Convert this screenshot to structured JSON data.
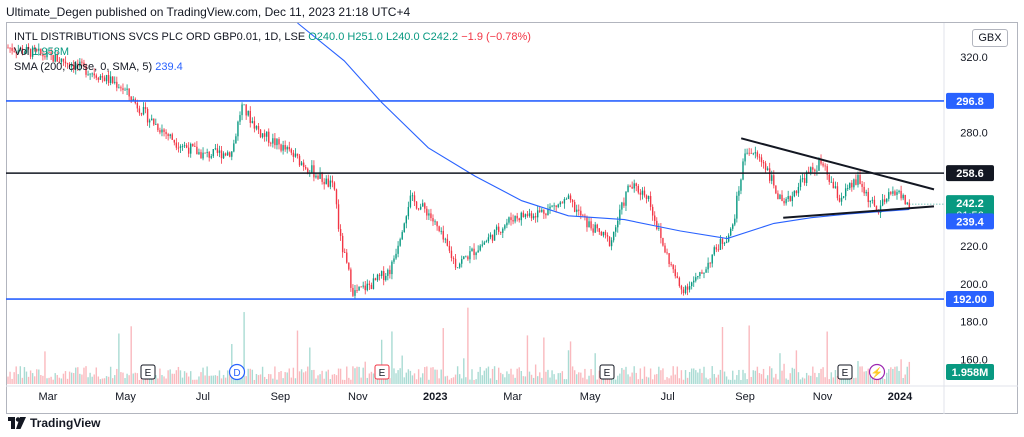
{
  "publisher_text": "Ultimate_Degen published on TradingView.com, Dec 11, 2023 21:18 UTC+4",
  "legend": {
    "symbol": "INTL DISTRIBUTIONS SVCS PLC ORD GBP0.01, 1D, LSE",
    "open": "O240.0",
    "high": "H251.0",
    "low": "L240.0",
    "close": "C242.2",
    "change": "−1.9 (−0.78%)",
    "vol_label": "Vol",
    "vol_value": "1.958M",
    "sma_label": "SMA (200, close, 0, SMA, 5)",
    "sma_value": "239.4"
  },
  "currency": "GBX",
  "footer_brand": "TradingView",
  "colors": {
    "up": "#089981",
    "down": "#f23645",
    "sma": "#2962ff",
    "hline_blue": "#2962ff",
    "hline_black": "#131722",
    "triangle": "#131722"
  },
  "chart_data": {
    "type": "candlestick",
    "y_axis": {
      "min": 146,
      "max": 338,
      "ticks": [
        "320.0",
        "280.0",
        "220.0",
        "200.0",
        "180.0",
        "160.0"
      ]
    },
    "x_axis": {
      "labels": [
        "Mar",
        "May",
        "Jul",
        "Sep",
        "Nov",
        "2023",
        "Mar",
        "May",
        "Jul",
        "Sep",
        "Nov",
        "2024"
      ]
    },
    "horizontal_lines": [
      {
        "value": 296.8,
        "label": "296.8",
        "color": "#2962ff"
      },
      {
        "value": 258.6,
        "label": "258.6",
        "color": "#131722"
      },
      {
        "value": 192.0,
        "label": "192.00",
        "color": "#2962ff"
      }
    ],
    "price_tags": [
      {
        "label": "242.2",
        "sub": "01:56",
        "value": 242.2,
        "color": "#089981"
      },
      {
        "label": "239.4",
        "value": 239.4,
        "color": "#2962ff"
      }
    ],
    "volume_tag": {
      "label": "1.958M",
      "color": "#089981"
    },
    "trendlines": [
      {
        "name": "upper",
        "from": [
          "Jul 2023",
          277
        ],
        "to": [
          "Dec 2023",
          250
        ]
      },
      {
        "name": "lower",
        "from": [
          "Aug 2023",
          235
        ],
        "to": [
          "Dec 2023",
          241
        ]
      }
    ],
    "price_path": [
      {
        "t": 0,
        "p": 325
      },
      {
        "t": 0.03,
        "p": 322
      },
      {
        "t": 0.06,
        "p": 318
      },
      {
        "t": 0.09,
        "p": 312
      },
      {
        "t": 0.12,
        "p": 305
      },
      {
        "t": 0.15,
        "p": 288
      },
      {
        "t": 0.18,
        "p": 275
      },
      {
        "t": 0.21,
        "p": 268
      },
      {
        "t": 0.24,
        "p": 270
      },
      {
        "t": 0.25,
        "p": 294
      },
      {
        "t": 0.27,
        "p": 280
      },
      {
        "t": 0.3,
        "p": 270
      },
      {
        "t": 0.33,
        "p": 258
      },
      {
        "t": 0.35,
        "p": 250
      },
      {
        "t": 0.355,
        "p": 225
      },
      {
        "t": 0.37,
        "p": 195
      },
      {
        "t": 0.39,
        "p": 200
      },
      {
        "t": 0.41,
        "p": 208
      },
      {
        "t": 0.43,
        "p": 245
      },
      {
        "t": 0.45,
        "p": 238
      },
      {
        "t": 0.48,
        "p": 210
      },
      {
        "t": 0.51,
        "p": 222
      },
      {
        "t": 0.54,
        "p": 235
      },
      {
        "t": 0.57,
        "p": 238
      },
      {
        "t": 0.6,
        "p": 244
      },
      {
        "t": 0.62,
        "p": 232
      },
      {
        "t": 0.645,
        "p": 222
      },
      {
        "t": 0.665,
        "p": 252
      },
      {
        "t": 0.685,
        "p": 247
      },
      {
        "t": 0.7,
        "p": 222
      },
      {
        "t": 0.72,
        "p": 197
      },
      {
        "t": 0.74,
        "p": 203
      },
      {
        "t": 0.76,
        "p": 220
      },
      {
        "t": 0.775,
        "p": 228
      },
      {
        "t": 0.79,
        "p": 272
      },
      {
        "t": 0.81,
        "p": 264
      },
      {
        "t": 0.83,
        "p": 240
      },
      {
        "t": 0.85,
        "p": 255
      },
      {
        "t": 0.87,
        "p": 264
      },
      {
        "t": 0.89,
        "p": 245
      },
      {
        "t": 0.91,
        "p": 255
      },
      {
        "t": 0.93,
        "p": 238
      },
      {
        "t": 0.95,
        "p": 250
      },
      {
        "t": 0.965,
        "p": 241
      }
    ],
    "events": [
      {
        "label": "E",
        "kind": "earnings"
      },
      {
        "label": "D",
        "kind": "dividend"
      },
      {
        "label": "E",
        "kind": "earnings"
      },
      {
        "label": "E",
        "kind": "earnings"
      },
      {
        "label": "E",
        "kind": "earnings"
      },
      {
        "label": "⚡",
        "kind": "split"
      }
    ]
  }
}
